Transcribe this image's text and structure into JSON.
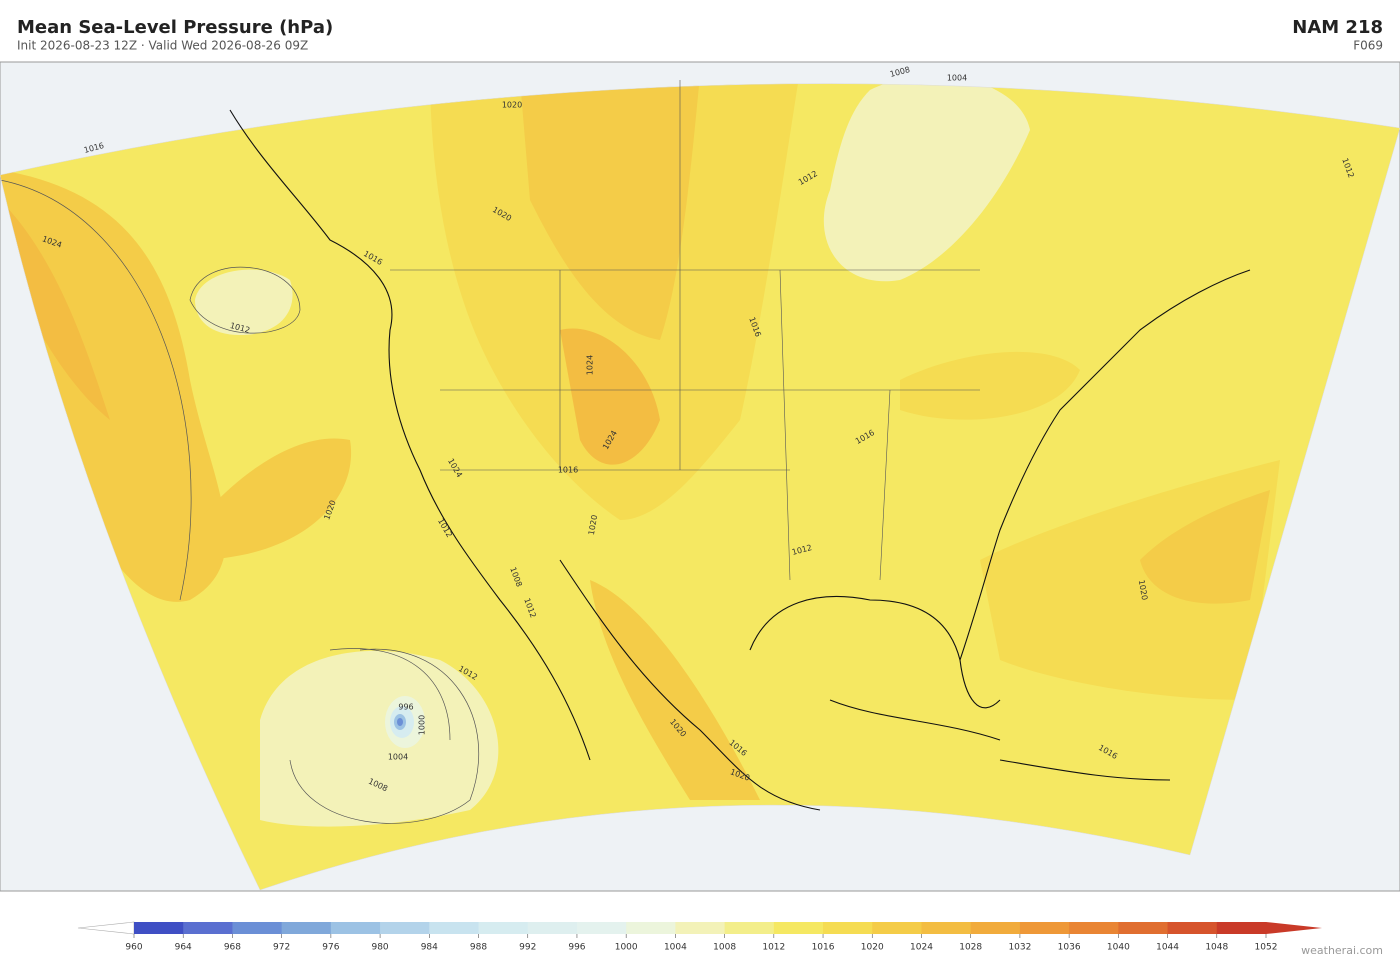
{
  "header": {
    "title": "Mean Sea-Level Pressure  (hPa)",
    "subtitle": "Init 2026-08-23 12Z   ·   Valid Wed 2026-08-26 09Z",
    "model": "NAM  218",
    "forecast_hour": "F069"
  },
  "map": {
    "contour_labels": [
      1016,
      1024,
      1012,
      1020,
      1012,
      1008,
      1004,
      1000,
      996,
      1020,
      1020,
      1016,
      1024,
      1024,
      1016,
      1020,
      1024,
      1012,
      1008,
      1012,
      1012,
      1016,
      1016,
      1012,
      1008,
      1004,
      1012,
      1020,
      1016,
      1016,
      1020,
      1020
    ]
  },
  "colorbar": {
    "ticks": [
      960,
      964,
      968,
      972,
      976,
      980,
      984,
      988,
      992,
      996,
      1000,
      1004,
      1008,
      1012,
      1016,
      1020,
      1024,
      1028,
      1032,
      1036,
      1040,
      1044,
      1048,
      1052
    ],
    "colors": [
      "#3f4fc4",
      "#5a6fd0",
      "#6b8fd6",
      "#80a8da",
      "#9cc2e4",
      "#b3d3ea",
      "#c8e3ef",
      "#d6ecf0",
      "#deefef",
      "#e4f2ee",
      "#ecf5dc",
      "#f3f2b8",
      "#f3ee8a",
      "#f5e862",
      "#f5dc52",
      "#f4cc48",
      "#f3bd42",
      "#f1ab3c",
      "#ee9838",
      "#e98534",
      "#e06e30",
      "#d6542c",
      "#c93a28"
    ]
  },
  "footer": {
    "watermark": "weatherai.com"
  }
}
